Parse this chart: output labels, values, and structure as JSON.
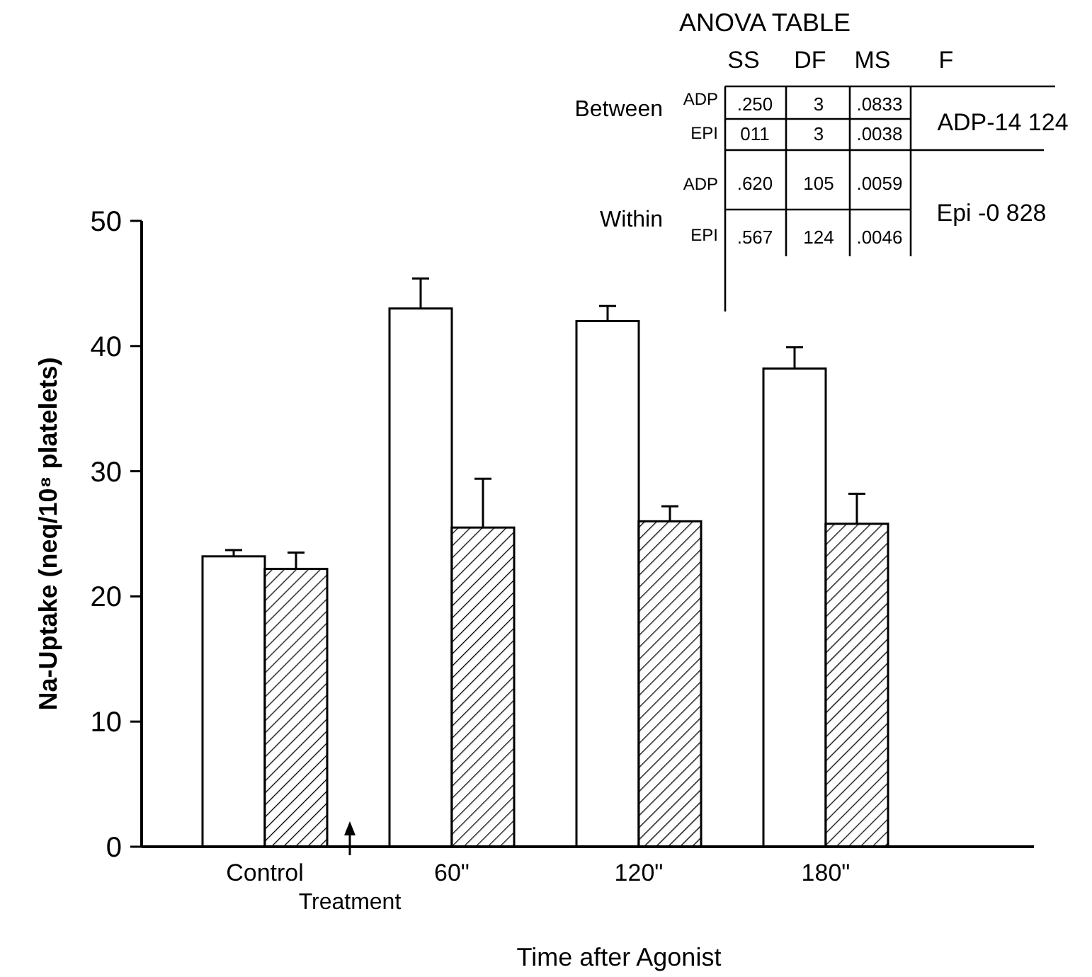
{
  "chart_data": {
    "type": "bar",
    "xlabel": "Time after Agonist",
    "ylabel": "Na-Uptake (neq/10⁸ platelets)",
    "categories": [
      "Control",
      "60\"",
      "120\"",
      "180\""
    ],
    "series": [
      {
        "color": "#ffffff",
        "values": [
          23.2,
          43.0,
          42.0,
          38.2
        ],
        "errors": [
          0.5,
          2.4,
          1.2,
          1.7
        ]
      },
      {
        "color": "#000000",
        "values": [
          22.2,
          25.5,
          26.0,
          25.8
        ],
        "errors": [
          1.3,
          3.9,
          1.2,
          2.4
        ]
      }
    ],
    "ylim": [
      0,
      50
    ],
    "yticks": [
      0,
      10,
      20,
      30,
      40,
      50
    ],
    "grid": false,
    "annotations": [
      "ANOVA TABLE",
      "SS",
      "DF",
      "MS",
      "F",
      "Between",
      "Within",
      "ADP",
      "EPI",
      "ADP",
      "EPI",
      ".250",
      "3",
      ".0833",
      "011",
      "3",
      ".0038",
      ".620",
      "105",
      ".0059",
      ".567",
      "124",
      ".0046",
      "ADP-14 124",
      "Epi -0 828",
      "Treatment"
    ]
  }
}
